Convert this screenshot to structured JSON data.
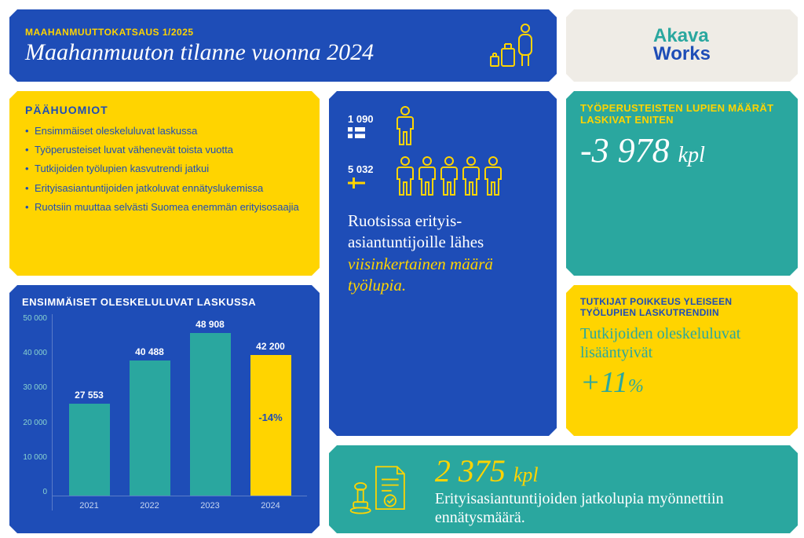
{
  "header": {
    "subtitle": "MAAHANMUUTTOKATSAUS 1/2025",
    "title": "Maahanmuuton tilanne vuonna 2024"
  },
  "logo": {
    "part1": "Akava",
    "part2": "Works"
  },
  "highlights": {
    "title": "PÄÄHUOMIOT",
    "items": [
      "Ensimmäiset oleskeluluvat laskussa",
      "Työperusteiset luvat vähenevät toista vuotta",
      "Tutkijoiden työlupien kasvutrendi jatkui",
      "Erityisasiantuntijoiden jatkoluvat ennätyslukemissa",
      "Ruotsiin muuttaa selvästi Suomea enemmän erityisosaajia"
    ]
  },
  "chart": {
    "title": "ENSIMMÄISET OLESKELULUVAT LASKUSSA",
    "type": "bar",
    "ymax": 50000,
    "ytick_step": 10000,
    "yticks": [
      "0",
      "10 000",
      "20 000",
      "30 000",
      "40 000",
      "50 000"
    ],
    "categories": [
      "2021",
      "2022",
      "2023",
      "2024"
    ],
    "values": [
      27553,
      40488,
      48908,
      42200
    ],
    "value_labels": [
      "27 553",
      "40 488",
      "48 908",
      "42 200"
    ],
    "bar_colors": [
      "#2aa79f",
      "#2aa79f",
      "#2aa79f",
      "#ffd400"
    ],
    "highlight_pct": "-14%",
    "background_color": "#1e4db7",
    "axis_color": "#5a7cc8",
    "ytick_color": "#8ad4cf"
  },
  "middle": {
    "fin_count": "1 090",
    "swe_count": "5 032",
    "fin_icons": 1,
    "swe_icons": 5,
    "statement_pre": "Ruotsissa erityis­asiantuntijoille lähes ",
    "statement_em": "viisinkertainen määrä työlupia.",
    "icon_color": "#ffd400"
  },
  "stat1": {
    "lead": "TYÖPERUSTEISTEN LUPIEN MÄÄRÄT LASKIVAT ENITEN",
    "value": "-3 978",
    "unit": "kpl",
    "bg": "#2aa79f",
    "lead_color": "#ffd400",
    "value_color": "#ffffff"
  },
  "stat2": {
    "lead": "TUTKIJAT POIKKEUS YLEISEEN TYÖLUPIEN LASKUTRENDIIN",
    "body": "Tutkijoiden oleskelu­luvat lisääntyivät",
    "value": "+11",
    "unit": "%",
    "bg": "#ffd400",
    "lead_color": "#1e4db7",
    "value_color": "#2aa79f"
  },
  "bottom": {
    "value": "2 375",
    "unit": "kpl",
    "body": "Erityisasiantuntijoiden jatkolupia myönnettiin ennätysmäärä.",
    "bg": "#2aa79f",
    "value_color": "#ffd400",
    "icon_color": "#ffd400"
  },
  "colors": {
    "blue": "#1e4db7",
    "yellow": "#ffd400",
    "teal": "#2aa79f",
    "cream": "#efece6"
  }
}
